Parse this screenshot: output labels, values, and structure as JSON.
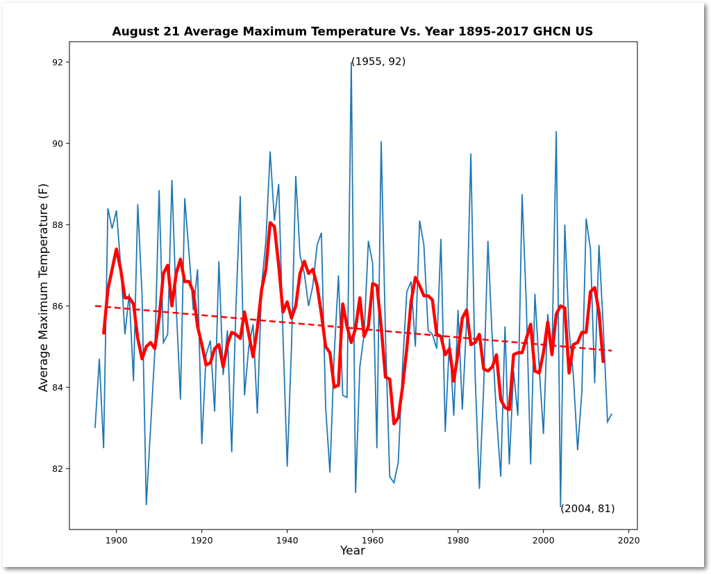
{
  "chart_data": {
    "type": "line",
    "title": "August 21 Average Maximum Temperature Vs. Year 1895-2017 GHCN US",
    "xlabel": "Year",
    "ylabel": "Average Maximum Temperature (F)",
    "xlim": [
      1889,
      2022
    ],
    "ylim": [
      80.5,
      92.5
    ],
    "xticks": [
      1900,
      1920,
      1940,
      1960,
      1980,
      2000,
      2020
    ],
    "yticks": [
      82,
      84,
      86,
      88,
      90,
      92
    ],
    "grid": false,
    "colors": {
      "annual": "#1f77b4",
      "smoothed": "#ff0000",
      "trend": "#ff0000"
    },
    "series": [
      {
        "style": "thin-line",
        "x": [
          1895,
          1896,
          1897,
          1898,
          1899,
          1900,
          1901,
          1902,
          1903,
          1904,
          1905,
          1906,
          1907,
          1908,
          1909,
          1910,
          1911,
          1912,
          1913,
          1914,
          1915,
          1916,
          1917,
          1918,
          1919,
          1920,
          1921,
          1922,
          1923,
          1924,
          1925,
          1926,
          1927,
          1928,
          1929,
          1930,
          1931,
          1932,
          1933,
          1934,
          1935,
          1936,
          1937,
          1938,
          1939,
          1940,
          1941,
          1942,
          1943,
          1944,
          1945,
          1946,
          1947,
          1948,
          1949,
          1950,
          1951,
          1952,
          1953,
          1954,
          1955,
          1956,
          1957,
          1958,
          1959,
          1960,
          1961,
          1962,
          1963,
          1964,
          1965,
          1966,
          1967,
          1968,
          1969,
          1970,
          1971,
          1972,
          1973,
          1974,
          1975,
          1976,
          1977,
          1978,
          1979,
          1980,
          1981,
          1982,
          1983,
          1984,
          1985,
          1986,
          1987,
          1988,
          1989,
          1990,
          1991,
          1992,
          1993,
          1994,
          1995,
          1996,
          1997,
          1998,
          1999,
          2000,
          2001,
          2002,
          2003,
          2004,
          2005,
          2006,
          2007,
          2008,
          2009,
          2010,
          2011,
          2012,
          2013,
          2014,
          2015,
          2016
        ],
        "values": [
          83.0,
          84.7,
          82.5,
          88.4,
          87.9,
          88.35,
          87.0,
          85.3,
          86.3,
          84.15,
          88.5,
          86.3,
          81.1,
          83.0,
          84.9,
          88.85,
          85.1,
          85.3,
          89.1,
          86.0,
          83.7,
          88.65,
          87.3,
          85.9,
          86.9,
          82.6,
          84.8,
          85.15,
          83.4,
          87.1,
          84.3,
          85.4,
          82.4,
          86.0,
          88.7,
          83.8,
          85.0,
          85.55,
          83.35,
          86.5,
          87.6,
          89.8,
          88.1,
          89.0,
          85.3,
          82.05,
          85.0,
          89.2,
          87.25,
          86.8,
          86.0,
          86.5,
          87.5,
          87.8,
          83.5,
          81.9,
          84.8,
          86.75,
          83.8,
          83.75,
          92.0,
          81.4,
          84.5,
          85.3,
          87.6,
          87.05,
          82.5,
          90.05,
          85.3,
          81.8,
          81.65,
          82.15,
          84.5,
          86.35,
          86.6,
          85.0,
          88.1,
          87.5,
          85.4,
          85.3,
          84.95,
          87.65,
          82.9,
          85.2,
          83.3,
          85.9,
          83.45,
          85.6,
          89.75,
          84.3,
          81.5,
          84.0,
          87.6,
          85.2,
          83.3,
          81.8,
          85.5,
          82.1,
          84.4,
          83.3,
          88.75,
          86.0,
          82.1,
          86.3,
          84.5,
          82.85,
          85.8,
          84.8,
          90.3,
          81.05,
          88.0,
          85.4,
          84.3,
          82.45,
          83.9,
          88.15,
          87.4,
          84.1,
          87.5,
          85.5,
          83.15,
          83.35
        ]
      },
      {
        "style": "thick-line",
        "x": [
          1897,
          1898,
          1899,
          1900,
          1901,
          1902,
          1903,
          1904,
          1905,
          1906,
          1907,
          1908,
          1909,
          1910,
          1911,
          1912,
          1913,
          1914,
          1915,
          1916,
          1917,
          1918,
          1919,
          1920,
          1921,
          1922,
          1923,
          1924,
          1925,
          1926,
          1927,
          1928,
          1929,
          1930,
          1931,
          1932,
          1933,
          1934,
          1935,
          1936,
          1937,
          1938,
          1939,
          1940,
          1941,
          1942,
          1943,
          1944,
          1945,
          1946,
          1947,
          1948,
          1949,
          1950,
          1951,
          1952,
          1953,
          1954,
          1955,
          1956,
          1957,
          1958,
          1959,
          1960,
          1961,
          1962,
          1963,
          1964,
          1965,
          1966,
          1967,
          1968,
          1969,
          1970,
          1971,
          1972,
          1973,
          1974,
          1975,
          1976,
          1977,
          1978,
          1979,
          1980,
          1981,
          1982,
          1983,
          1984,
          1985,
          1986,
          1987,
          1988,
          1989,
          1990,
          1991,
          1992,
          1993,
          1994,
          1995,
          1996,
          1997,
          1998,
          1999,
          2000,
          2001,
          2002,
          2003,
          2004,
          2005,
          2006,
          2007,
          2008,
          2009,
          2010,
          2011,
          2012,
          2013,
          2014
        ],
        "values": [
          85.3,
          86.4,
          86.9,
          87.4,
          86.9,
          86.2,
          86.2,
          86.05,
          85.2,
          84.7,
          85.0,
          85.1,
          84.95,
          85.7,
          86.8,
          87.0,
          86.0,
          86.8,
          87.15,
          86.6,
          86.6,
          86.35,
          85.5,
          85.05,
          84.55,
          84.6,
          84.95,
          85.05,
          84.5,
          85.05,
          85.35,
          85.3,
          85.2,
          85.85,
          85.3,
          84.75,
          85.45,
          86.4,
          86.9,
          88.05,
          87.95,
          87.0,
          85.85,
          86.1,
          85.7,
          86.0,
          86.8,
          87.1,
          86.8,
          86.9,
          86.5,
          85.8,
          85.0,
          84.85,
          84.0,
          84.05,
          86.05,
          85.5,
          85.1,
          85.45,
          86.2,
          85.25,
          85.5,
          86.55,
          86.5,
          85.5,
          84.25,
          84.2,
          83.1,
          83.25,
          84.0,
          84.95,
          86.1,
          86.7,
          86.5,
          86.25,
          86.25,
          86.15,
          85.3,
          85.25,
          84.8,
          84.95,
          84.15,
          84.85,
          85.7,
          85.9,
          85.05,
          85.1,
          85.3,
          84.45,
          84.4,
          84.5,
          84.8,
          83.7,
          83.5,
          83.45,
          84.8,
          84.85,
          84.85,
          85.2,
          85.55,
          84.4,
          84.35,
          84.85,
          85.6,
          84.8,
          85.8,
          86.0,
          85.95,
          84.35,
          85.05,
          85.1,
          85.35,
          85.35,
          86.35,
          86.45,
          85.85,
          84.6
        ]
      },
      {
        "style": "dashed-line",
        "x": [
          1895,
          2016
        ],
        "values": [
          86.0,
          84.9
        ]
      }
    ],
    "annotations": [
      {
        "text": "(1955, 92)",
        "x": 1955,
        "y": 92
      },
      {
        "text": "(2004, 81)",
        "x": 2004,
        "y": 81
      }
    ]
  }
}
